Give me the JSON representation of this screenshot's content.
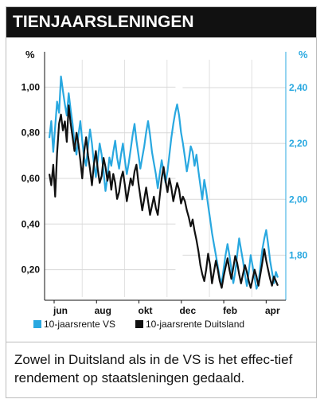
{
  "header": {
    "title": "TIENJAARSLENINGEN"
  },
  "caption": {
    "text": "Zowel in Duitsland als in de VS is het effec-tief rendement op staatsleningen gedaald."
  },
  "chart_data": {
    "type": "line",
    "title": "",
    "left_axis": {
      "unit": "%",
      "range": [
        0.08,
        1.12
      ],
      "ticks": [
        1.0,
        0.8,
        0.6,
        0.4,
        0.2
      ],
      "tick_labels": [
        "1,00",
        "0,80",
        "0,60",
        "0,40",
        "0,20"
      ]
    },
    "right_axis": {
      "unit": "%",
      "range": [
        1.65,
        2.5
      ],
      "ticks": [
        2.4,
        2.2,
        2.0,
        1.8
      ],
      "tick_labels": [
        "2,40",
        "2,20",
        "2,00",
        "1,80"
      ]
    },
    "x_labels": [
      "jun",
      "aug",
      "okt",
      "dec",
      "feb",
      "apr"
    ],
    "grid": true,
    "legend_placement": "bottom",
    "colors": {
      "us": "#29a8e0",
      "de": "#111111"
    },
    "series": [
      {
        "name": "10-jaarsrente VS",
        "axis": "right",
        "values": [
          2.22,
          2.28,
          2.17,
          2.26,
          2.35,
          2.31,
          2.44,
          2.39,
          2.34,
          2.3,
          2.38,
          2.32,
          2.27,
          2.2,
          2.16,
          2.23,
          2.28,
          2.21,
          2.15,
          2.12,
          2.19,
          2.25,
          2.2,
          2.13,
          2.08,
          2.14,
          2.2,
          2.16,
          2.1,
          2.03,
          2.08,
          2.15,
          2.12,
          2.17,
          2.21,
          2.15,
          2.11,
          2.16,
          2.2,
          2.14,
          2.09,
          2.13,
          2.18,
          2.23,
          2.27,
          2.21,
          2.16,
          2.11,
          2.15,
          2.19,
          2.24,
          2.28,
          2.23,
          2.17,
          2.13,
          2.09,
          2.04,
          2.09,
          2.14,
          2.1,
          2.06,
          2.1,
          2.16,
          2.22,
          2.27,
          2.31,
          2.34,
          2.3,
          2.24,
          2.2,
          2.15,
          2.1,
          2.14,
          2.19,
          2.17,
          2.12,
          2.16,
          2.1,
          2.05,
          2.0,
          2.07,
          2.03,
          1.98,
          1.93,
          1.88,
          1.84,
          1.8,
          1.76,
          1.72,
          1.7,
          1.75,
          1.8,
          1.84,
          1.8,
          1.75,
          1.7,
          1.74,
          1.8,
          1.86,
          1.82,
          1.78,
          1.73,
          1.69,
          1.74,
          1.8,
          1.76,
          1.72,
          1.68,
          1.7,
          1.76,
          1.82,
          1.86,
          1.89,
          1.84,
          1.78,
          1.74,
          1.7,
          1.74,
          1.72
        ]
      },
      {
        "name": "10-jaarsrente Duitsland",
        "axis": "left",
        "values": [
          0.62,
          0.57,
          0.66,
          0.52,
          0.71,
          0.84,
          0.88,
          0.81,
          0.85,
          0.76,
          0.92,
          0.84,
          0.78,
          0.72,
          0.8,
          0.75,
          0.68,
          0.6,
          0.72,
          0.78,
          0.7,
          0.64,
          0.57,
          0.66,
          0.72,
          0.64,
          0.58,
          0.61,
          0.69,
          0.65,
          0.59,
          0.63,
          0.55,
          0.62,
          0.58,
          0.51,
          0.54,
          0.6,
          0.63,
          0.57,
          0.5,
          0.55,
          0.6,
          0.57,
          0.63,
          0.66,
          0.58,
          0.52,
          0.46,
          0.51,
          0.56,
          0.5,
          0.44,
          0.48,
          0.52,
          0.47,
          0.44,
          0.52,
          0.6,
          0.65,
          0.59,
          0.54,
          0.6,
          0.56,
          0.5,
          0.54,
          0.58,
          0.55,
          0.49,
          0.52,
          0.5,
          0.46,
          0.43,
          0.39,
          0.42,
          0.37,
          0.33,
          0.28,
          0.22,
          0.18,
          0.15,
          0.2,
          0.27,
          0.22,
          0.14,
          0.19,
          0.24,
          0.2,
          0.15,
          0.12,
          0.17,
          0.21,
          0.25,
          0.2,
          0.16,
          0.21,
          0.26,
          0.23,
          0.18,
          0.14,
          0.18,
          0.22,
          0.19,
          0.15,
          0.12,
          0.16,
          0.2,
          0.17,
          0.13,
          0.18,
          0.23,
          0.29,
          0.24,
          0.2,
          0.16,
          0.13,
          0.17,
          0.15,
          0.13
        ]
      }
    ]
  }
}
